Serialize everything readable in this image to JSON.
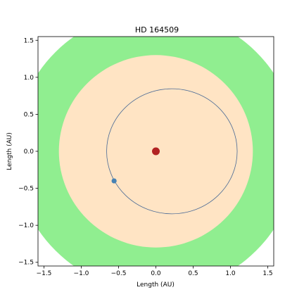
{
  "chart_data": {
    "type": "scatter",
    "title": "HD 164509",
    "xlabel": "Length (AU)",
    "ylabel": "Length (AU)",
    "xlim": [
      -1.58,
      1.58
    ],
    "ylim": [
      -1.55,
      1.55
    ],
    "xticks": [
      -1.5,
      -1.0,
      -0.5,
      0.0,
      0.5,
      1.0,
      1.5
    ],
    "xtick_labels": [
      "−1.5",
      "−1.0",
      "−0.5",
      "0.0",
      "0.5",
      "1.0",
      "1.5"
    ],
    "yticks": [
      -1.5,
      -1.0,
      -0.5,
      0.0,
      0.5,
      1.0,
      1.5
    ],
    "ytick_labels": [
      "−1.5",
      "−1.0",
      "−0.5",
      "0.0",
      "0.5",
      "1.0",
      "1.5"
    ],
    "grid": false,
    "regions": [
      {
        "shape": "circle",
        "center": [
          0,
          0
        ],
        "radius": 1.9,
        "color": "#90ee90"
      },
      {
        "shape": "circle",
        "center": [
          0,
          0
        ],
        "radius": 1.3,
        "color": "#ffe4c4"
      }
    ],
    "orbit": {
      "center": [
        0.215,
        0.0
      ],
      "rx": 0.875,
      "ry": 0.845,
      "color": "#4a6a96"
    },
    "star": {
      "x": 0.0,
      "y": 0.0,
      "color": "#b22222"
    },
    "planet": {
      "x": -0.56,
      "y": -0.4,
      "color": "#4682b4"
    }
  }
}
